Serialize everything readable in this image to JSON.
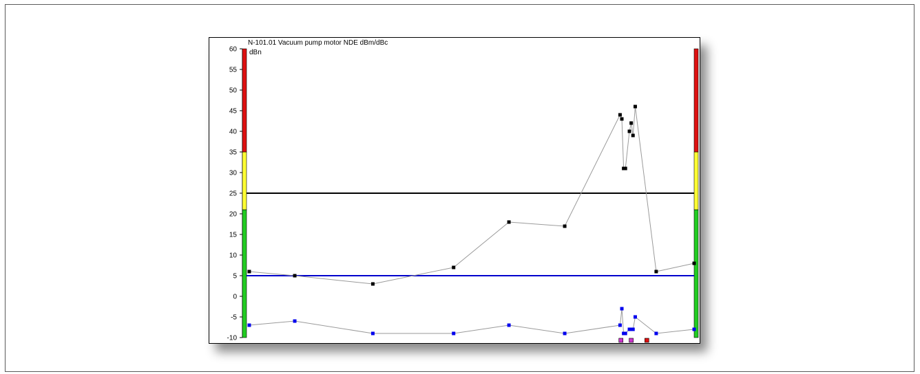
{
  "chart_data": {
    "type": "line",
    "title": "N-101.01 Vacuum pump motor NDE dBm/dBc",
    "unit_label": "dBn",
    "ylim": [
      -10,
      60
    ],
    "yticks": [
      60,
      55,
      50,
      45,
      40,
      35,
      30,
      25,
      20,
      15,
      10,
      5,
      0,
      -5,
      -10
    ],
    "xlim": [
      0,
      100
    ],
    "alarm_band": [
      {
        "from": -10,
        "to": 21,
        "color": "#22cc22"
      },
      {
        "from": 21,
        "to": 35,
        "color": "#ffff33"
      },
      {
        "from": 35,
        "to": 60,
        "color": "#dd1111"
      }
    ],
    "reference_lines": [
      {
        "y": 25,
        "color": "#000000"
      },
      {
        "y": 5,
        "color": "#0000cc"
      }
    ],
    "series": [
      {
        "color": "#000000",
        "points": [
          [
            0.3,
            6
          ],
          [
            10.5,
            5
          ],
          [
            28,
            3
          ],
          [
            46.1,
            7
          ],
          [
            58.5,
            18
          ],
          [
            71,
            17
          ],
          [
            83.4,
            44
          ],
          [
            83.8,
            43
          ],
          [
            84.2,
            31
          ],
          [
            84.6,
            31
          ],
          [
            85.5,
            40
          ],
          [
            85.9,
            42
          ],
          [
            86.3,
            39
          ],
          [
            86.8,
            46
          ],
          [
            91.5,
            6
          ],
          [
            100,
            8
          ]
        ]
      },
      {
        "color": "#0000ee",
        "points": [
          [
            0.3,
            -7
          ],
          [
            10.5,
            -6
          ],
          [
            28,
            -9
          ],
          [
            46.1,
            -9
          ],
          [
            58.5,
            -7
          ],
          [
            71,
            -9
          ],
          [
            83.4,
            -7
          ],
          [
            83.8,
            -3
          ],
          [
            84.2,
            -9
          ],
          [
            84.6,
            -9
          ],
          [
            85.5,
            -8
          ],
          [
            85.9,
            -8
          ],
          [
            86.3,
            -8
          ],
          [
            86.8,
            -5
          ],
          [
            91.5,
            -9
          ],
          [
            100,
            -8
          ]
        ]
      }
    ],
    "event_markers": [
      {
        "x": 83.6,
        "color": "#cc33cc"
      },
      {
        "x": 85.9,
        "color": "#cc33cc"
      },
      {
        "x": 89.4,
        "color": "#dd1111"
      }
    ]
  }
}
